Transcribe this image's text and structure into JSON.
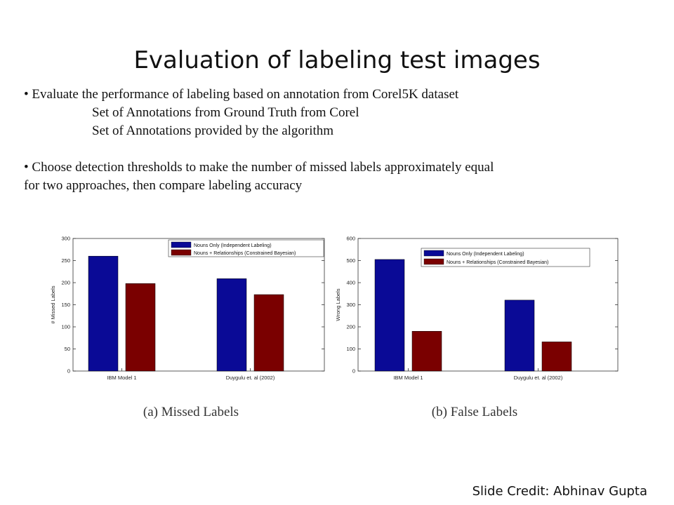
{
  "slide": {
    "title": "Evaluation of labeling test images",
    "bullet1": "• Evaluate the performance of labeling based on annotation from Corel5K dataset",
    "sub1": "Set of Annotations from Ground Truth from Corel",
    "sub2": "Set of Annotations provided by the algorithm",
    "bullet2_line1": "•  Choose detection thresholds to make the number of missed labels approximately equal",
    "bullet2_line2": "for two approaches, then compare labeling accuracy",
    "credit": "Slide Credit: Abhinav Gupta"
  },
  "colors": {
    "nouns_only": "#0a0a96",
    "nouns_relationships": "#7a0000"
  },
  "chart_data": [
    {
      "type": "bar",
      "caption": "(a) Missed Labels",
      "ylabel": "# Missed Labels",
      "ylim": [
        0,
        300
      ],
      "yticks": [
        0,
        50,
        100,
        150,
        200,
        250,
        300
      ],
      "categories": [
        "IBM Model 1",
        "Duygulu et. al (2002)"
      ],
      "series": [
        {
          "name": "Nouns Only (Independent Labeling)",
          "values": [
            260,
            209
          ]
        },
        {
          "name": "Nouns + Relationships (Constrained Bayesian)",
          "values": [
            198,
            173
          ]
        }
      ],
      "legend": "top-right",
      "grid": false
    },
    {
      "type": "bar",
      "caption": "(b) False Labels",
      "ylabel": "Wrong Labels",
      "ylim": [
        0,
        600
      ],
      "yticks": [
        0,
        100,
        200,
        300,
        400,
        500,
        600
      ],
      "categories": [
        "IBM Model 1",
        "Duygulu et. al (2002)"
      ],
      "series": [
        {
          "name": "Nouns Only (Independent Labeling)",
          "values": [
            505,
            321
          ]
        },
        {
          "name": "Nouns + Relationships (Constrained Bayesian)",
          "values": [
            180,
            132
          ]
        }
      ],
      "legend": "top-right",
      "grid": false
    }
  ]
}
